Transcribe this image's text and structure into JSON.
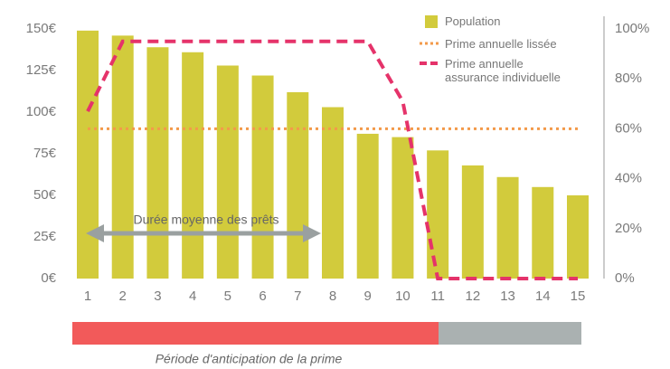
{
  "chart_data": {
    "type": "bar",
    "categories": [
      "1",
      "2",
      "3",
      "4",
      "5",
      "6",
      "7",
      "8",
      "9",
      "10",
      "11",
      "12",
      "13",
      "14",
      "15"
    ],
    "series": [
      {
        "name": "Population",
        "type": "bar",
        "color": "#d2cb3c",
        "values": [
          149,
          146,
          139,
          136,
          128,
          122,
          112,
          103,
          87,
          85,
          77,
          68,
          61,
          55,
          50
        ]
      },
      {
        "name": "Prime annuelle lissée",
        "type": "line",
        "line_style": "dotted",
        "axis": "y2",
        "color": "#f39a4a",
        "values": [
          60,
          60,
          60,
          60,
          60,
          60,
          60,
          60,
          60,
          60,
          60,
          60,
          60,
          60,
          60
        ]
      },
      {
        "name": "Prime annuelle assurance individuelle",
        "type": "line",
        "line_style": "dashed",
        "axis": "y2",
        "color": "#e5336a",
        "values": [
          67,
          95,
          95,
          95,
          95,
          95,
          95,
          95,
          95,
          71,
          0,
          0,
          0,
          0,
          0
        ]
      }
    ],
    "ylim": [
      0,
      150
    ],
    "yticks": [
      {
        "value": 0,
        "label": "0€"
      },
      {
        "value": 25,
        "label": "25€"
      },
      {
        "value": 50,
        "label": "50€"
      },
      {
        "value": 75,
        "label": "75€"
      },
      {
        "value": 100,
        "label": "100€"
      },
      {
        "value": 125,
        "label": "125€"
      },
      {
        "value": 150,
        "label": "150€"
      }
    ],
    "y2lim": [
      0,
      100
    ],
    "y2ticks": [
      {
        "value": 0,
        "label": "0%"
      },
      {
        "value": 20,
        "label": "20%"
      },
      {
        "value": 40,
        "label": "40%"
      },
      {
        "value": 60,
        "label": "60%"
      },
      {
        "value": 80,
        "label": "80%"
      },
      {
        "value": 100,
        "label": "100%"
      }
    ],
    "annotations": [
      "Durée moyenne des prêts",
      "Période d'anticipation de la prime"
    ],
    "legend": "upper right"
  }
}
